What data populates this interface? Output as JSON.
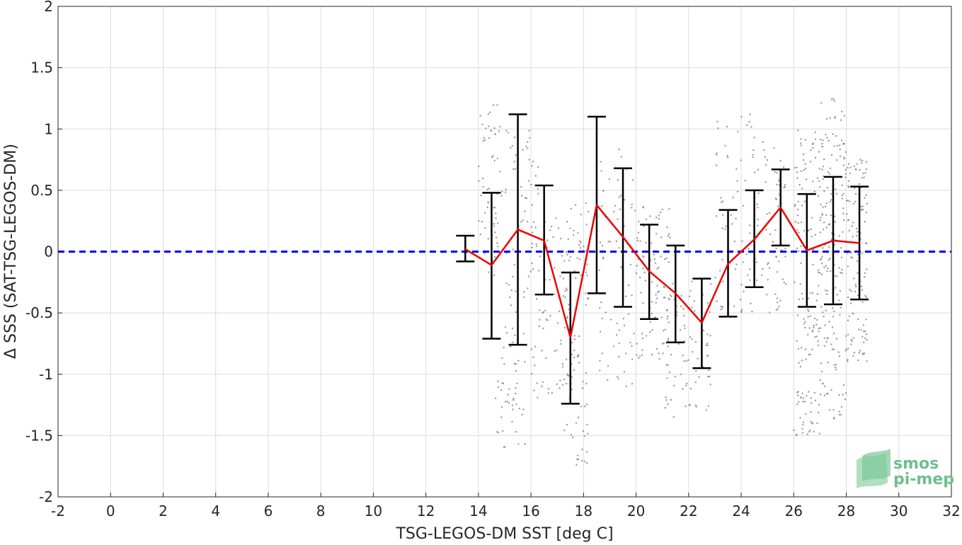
{
  "chart_data": {
    "type": "scatter",
    "xlabel": "TSG-LEGOS-DM SST [deg C]",
    "ylabel": "Δ SSS (SAT-TSG-LEGOS-DM)",
    "xlim": [
      -2,
      32
    ],
    "ylim": [
      -2,
      2
    ],
    "xticks": [
      "-2",
      "0",
      "2",
      "4",
      "6",
      "8",
      "10",
      "12",
      "14",
      "16",
      "18",
      "20",
      "22",
      "24",
      "26",
      "28",
      "30",
      "32"
    ],
    "yticks": [
      "2",
      "1.5",
      "1",
      "0.5",
      "0",
      "-0.5",
      "-1",
      "-1.5",
      "-2"
    ],
    "grid": true,
    "reference_line": {
      "y": 0,
      "style": "dashed",
      "color": "#0000ee"
    },
    "binned_mean": {
      "color": "#ee0000",
      "x": [
        13.5,
        14.5,
        15.5,
        16.5,
        17.5,
        18.5,
        19.5,
        20.5,
        21.5,
        22.5,
        23.5,
        24.5,
        25.5,
        26.5,
        27.5,
        28.5
      ],
      "y": [
        0.02,
        -0.11,
        0.18,
        0.09,
        -0.7,
        0.38,
        0.12,
        -0.16,
        -0.34,
        -0.58,
        -0.1,
        0.1,
        0.36,
        0.01,
        0.09,
        0.07
      ]
    },
    "error_bars": {
      "color": "#000000",
      "x": [
        13.5,
        14.5,
        15.5,
        16.5,
        17.5,
        18.5,
        19.5,
        20.5,
        21.5,
        22.5,
        23.5,
        24.5,
        25.5,
        26.5,
        27.5,
        28.5
      ],
      "lower": [
        -0.08,
        -0.71,
        -0.76,
        -0.35,
        -1.24,
        -0.34,
        -0.45,
        -0.55,
        -0.74,
        -0.95,
        -0.53,
        -0.29,
        0.05,
        -0.45,
        -0.43,
        -0.39
      ],
      "upper": [
        0.13,
        0.48,
        1.12,
        0.54,
        -0.17,
        1.1,
        0.68,
        0.22,
        0.05,
        -0.22,
        0.34,
        0.5,
        0.67,
        0.47,
        0.61,
        0.53
      ]
    },
    "scatter_color": "#808080",
    "scatter_clusters": [
      {
        "x": [
          14.0,
          14.9
        ],
        "y": [
          -0.2,
          1.2
        ],
        "n": 60
      },
      {
        "x": [
          14.6,
          15.8
        ],
        "y": [
          -1.6,
          -0.6
        ],
        "n": 50
      },
      {
        "x": [
          15.0,
          16.3
        ],
        "y": [
          -0.5,
          1.0
        ],
        "n": 60
      },
      {
        "x": [
          16.0,
          17.5
        ],
        "y": [
          -1.2,
          0.3
        ],
        "n": 70
      },
      {
        "x": [
          17.2,
          18.2
        ],
        "y": [
          -1.75,
          0.4
        ],
        "n": 90
      },
      {
        "x": [
          18.6,
          20.0
        ],
        "y": [
          -1.1,
          0.9
        ],
        "n": 70
      },
      {
        "x": [
          20.0,
          21.3
        ],
        "y": [
          -0.9,
          0.4
        ],
        "n": 90
      },
      {
        "x": [
          21.0,
          22.9
        ],
        "y": [
          -1.35,
          -0.2
        ],
        "n": 90
      },
      {
        "x": [
          23.0,
          24.6
        ],
        "y": [
          -0.5,
          1.15
        ],
        "n": 70
      },
      {
        "x": [
          24.5,
          25.7
        ],
        "y": [
          -0.5,
          0.9
        ],
        "n": 70
      },
      {
        "x": [
          26.0,
          27.0
        ],
        "y": [
          -1.5,
          1.0
        ],
        "n": 150
      },
      {
        "x": [
          27.0,
          28.0
        ],
        "y": [
          -1.4,
          1.25
        ],
        "n": 180
      },
      {
        "x": [
          28.0,
          28.8
        ],
        "y": [
          -0.9,
          0.75
        ],
        "n": 120
      }
    ]
  },
  "logo": {
    "line1": "smos",
    "line2": "pi-mep"
  }
}
